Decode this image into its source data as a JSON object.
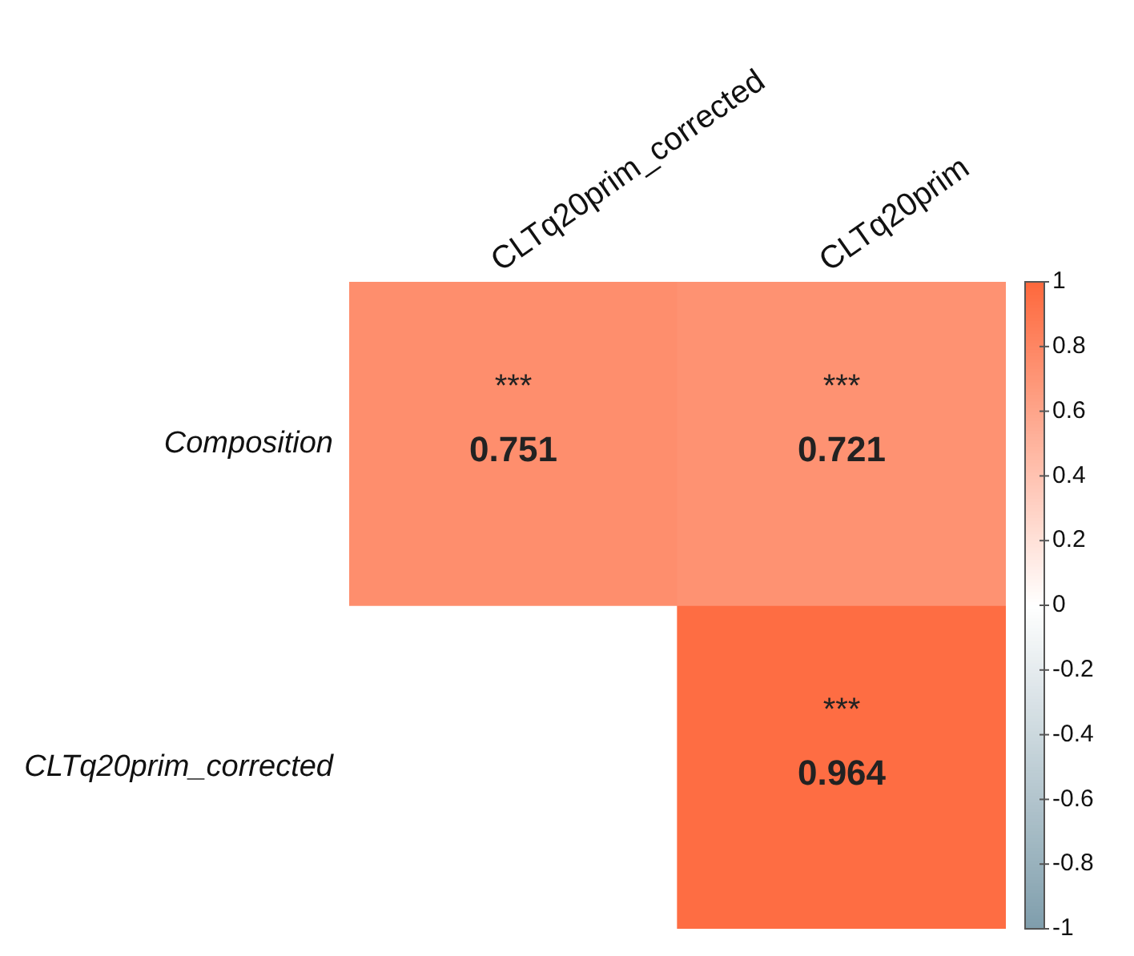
{
  "chart_data": {
    "type": "heatmap",
    "categories": [
      "CLTq20prim_corrected",
      "CLTq20prim"
    ],
    "y_categories": [
      "Composition",
      "CLTq20prim_corrected"
    ],
    "cells": [
      [
        0.751,
        0.721
      ],
      [
        null,
        0.964
      ]
    ],
    "cell_labels": [
      [
        "***\n0.751",
        "***\n0.721"
      ],
      [
        null,
        "***\n0.964"
      ]
    ],
    "clim": [
      -1,
      1
    ],
    "cticks": [
      1,
      0.8,
      0.6,
      0.4,
      0.2,
      0,
      -0.2,
      -0.4,
      -0.6,
      -0.8,
      -1
    ]
  }
}
